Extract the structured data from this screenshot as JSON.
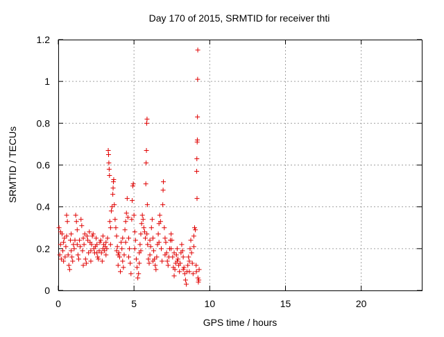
{
  "chart_data": {
    "type": "scatter",
    "title": "Day 170 of 2015, SRMTID for receiver thti",
    "xlabel": "GPS time / hours",
    "ylabel": "SRMTID / TECUs",
    "xlim": [
      0,
      24
    ],
    "ylim": [
      0,
      1.2
    ],
    "xticks": [
      0,
      5,
      10,
      15,
      20
    ],
    "xtick_labels": [
      "0",
      "5",
      "10",
      "15",
      "20"
    ],
    "yticks": [
      0,
      0.2,
      0.4,
      0.6,
      0.8,
      1.0,
      1.2
    ],
    "ytick_labels": [
      "0",
      "0.2",
      "0.4",
      "0.6",
      "0.8",
      "1",
      "1.2"
    ],
    "grid": true,
    "marker": "+",
    "colors": {
      "series": "#e00000",
      "grid": "#a0a0a0",
      "axis": "#000000"
    },
    "series": [
      {
        "name": "thti",
        "points": [
          [
            0.05,
            0.3
          ],
          [
            0.1,
            0.17
          ],
          [
            0.15,
            0.22
          ],
          [
            0.2,
            0.15
          ],
          [
            0.25,
            0.27
          ],
          [
            0.3,
            0.19
          ],
          [
            0.35,
            0.14
          ],
          [
            0.4,
            0.25
          ],
          [
            0.45,
            0.16
          ],
          [
            0.5,
            0.21
          ],
          [
            0.55,
            0.36
          ],
          [
            0.6,
            0.33
          ],
          [
            0.65,
            0.17
          ],
          [
            0.7,
            0.12
          ],
          [
            0.75,
            0.1
          ],
          [
            0.8,
            0.24
          ],
          [
            0.85,
            0.19
          ],
          [
            0.9,
            0.16
          ],
          [
            0.95,
            0.14
          ],
          [
            1.0,
            0.22
          ],
          [
            1.05,
            0.2
          ],
          [
            1.1,
            0.24
          ],
          [
            1.15,
            0.36
          ],
          [
            1.2,
            0.33
          ],
          [
            1.25,
            0.29
          ],
          [
            1.3,
            0.17
          ],
          [
            1.35,
            0.15
          ],
          [
            1.4,
            0.24
          ],
          [
            1.45,
            0.21
          ],
          [
            1.5,
            0.34
          ],
          [
            1.55,
            0.31
          ],
          [
            1.6,
            0.19
          ],
          [
            1.65,
            0.12
          ],
          [
            1.7,
            0.22
          ],
          [
            1.75,
            0.27
          ],
          [
            1.8,
            0.15
          ],
          [
            1.85,
            0.13
          ],
          [
            1.9,
            0.26
          ],
          [
            1.95,
            0.24
          ],
          [
            2.0,
            0.18
          ],
          [
            2.05,
            0.28
          ],
          [
            2.1,
            0.23
          ],
          [
            2.15,
            0.14
          ],
          [
            2.2,
            0.22
          ],
          [
            2.25,
            0.26
          ],
          [
            2.3,
            0.27
          ],
          [
            2.35,
            0.2
          ],
          [
            2.4,
            0.18
          ],
          [
            2.45,
            0.21
          ],
          [
            2.5,
            0.25
          ],
          [
            2.55,
            0.22
          ],
          [
            2.6,
            0.16
          ],
          [
            2.65,
            0.15
          ],
          [
            2.7,
            0.19
          ],
          [
            2.75,
            0.23
          ],
          [
            2.8,
            0.24
          ],
          [
            2.85,
            0.18
          ],
          [
            2.9,
            0.14
          ],
          [
            2.95,
            0.2
          ],
          [
            3.0,
            0.22
          ],
          [
            3.05,
            0.19
          ],
          [
            3.1,
            0.21
          ],
          [
            3.15,
            0.23
          ],
          [
            3.2,
            0.2
          ],
          [
            3.25,
            0.25
          ],
          [
            3.3,
            0.67
          ],
          [
            3.32,
            0.65
          ],
          [
            3.34,
            0.61
          ],
          [
            3.36,
            0.58
          ],
          [
            3.38,
            0.55
          ],
          [
            3.4,
            0.33
          ],
          [
            3.45,
            0.3
          ],
          [
            3.5,
            0.38
          ],
          [
            3.55,
            0.4
          ],
          [
            3.6,
            0.46
          ],
          [
            3.62,
            0.49
          ],
          [
            3.64,
            0.52
          ],
          [
            3.66,
            0.53
          ],
          [
            3.7,
            0.41
          ],
          [
            3.75,
            0.34
          ],
          [
            3.8,
            0.3
          ],
          [
            3.85,
            0.26
          ],
          [
            3.9,
            0.21
          ],
          [
            3.95,
            0.12
          ],
          [
            4.0,
            0.18
          ],
          [
            4.05,
            0.16
          ],
          [
            4.1,
            0.09
          ],
          [
            4.15,
            0.23
          ],
          [
            4.2,
            0.2
          ],
          [
            4.25,
            0.14
          ],
          [
            4.3,
            0.11
          ],
          [
            4.35,
            0.17
          ],
          [
            4.4,
            0.29
          ],
          [
            4.45,
            0.33
          ],
          [
            4.5,
            0.37
          ],
          [
            4.55,
            0.44
          ],
          [
            4.6,
            0.35
          ],
          [
            4.65,
            0.25
          ],
          [
            4.7,
            0.2
          ],
          [
            4.75,
            0.13
          ],
          [
            4.8,
            0.08
          ],
          [
            4.85,
            0.34
          ],
          [
            4.88,
            0.43
          ],
          [
            4.92,
            0.5
          ],
          [
            4.95,
            0.51
          ],
          [
            5.0,
            0.36
          ],
          [
            5.05,
            0.28
          ],
          [
            5.1,
            0.24
          ],
          [
            5.15,
            0.15
          ],
          [
            5.2,
            0.11
          ],
          [
            5.25,
            0.06
          ],
          [
            5.3,
            0.08
          ],
          [
            5.35,
            0.18
          ],
          [
            5.4,
            0.22
          ],
          [
            5.45,
            0.27
          ],
          [
            5.5,
            0.32
          ],
          [
            5.55,
            0.36
          ],
          [
            5.6,
            0.34
          ],
          [
            5.65,
            0.3
          ],
          [
            5.7,
            0.28
          ],
          [
            5.75,
            0.25
          ],
          [
            5.78,
            0.51
          ],
          [
            5.8,
            0.61
          ],
          [
            5.82,
            0.67
          ],
          [
            5.84,
            0.8
          ],
          [
            5.86,
            0.82
          ],
          [
            5.88,
            0.41
          ],
          [
            5.9,
            0.22
          ],
          [
            5.95,
            0.15
          ],
          [
            6.0,
            0.13
          ],
          [
            6.05,
            0.17
          ],
          [
            6.1,
            0.21
          ],
          [
            6.15,
            0.3
          ],
          [
            6.2,
            0.34
          ],
          [
            6.25,
            0.25
          ],
          [
            6.3,
            0.19
          ],
          [
            6.35,
            0.15
          ],
          [
            6.4,
            0.12
          ],
          [
            6.45,
            0.1
          ],
          [
            6.5,
            0.16
          ],
          [
            6.55,
            0.22
          ],
          [
            6.6,
            0.27
          ],
          [
            6.65,
            0.32
          ],
          [
            6.7,
            0.36
          ],
          [
            6.75,
            0.33
          ],
          [
            6.8,
            0.2
          ],
          [
            6.85,
            0.14
          ],
          [
            6.9,
            0.41
          ],
          [
            6.92,
            0.48
          ],
          [
            6.94,
            0.52
          ],
          [
            7.0,
            0.3
          ],
          [
            7.05,
            0.25
          ],
          [
            7.1,
            0.23
          ],
          [
            7.15,
            0.18
          ],
          [
            7.2,
            0.14
          ],
          [
            7.25,
            0.12
          ],
          [
            7.3,
            0.16
          ],
          [
            7.35,
            0.2
          ],
          [
            7.4,
            0.24
          ],
          [
            7.45,
            0.27
          ],
          [
            7.5,
            0.24
          ],
          [
            7.55,
            0.16
          ],
          [
            7.6,
            0.11
          ],
          [
            7.65,
            0.07
          ],
          [
            7.7,
            0.1
          ],
          [
            7.75,
            0.13
          ],
          [
            7.8,
            0.17
          ],
          [
            7.85,
            0.2
          ],
          [
            7.9,
            0.15
          ],
          [
            7.95,
            0.12
          ],
          [
            8.0,
            0.09
          ],
          [
            8.05,
            0.13
          ],
          [
            8.1,
            0.18
          ],
          [
            8.15,
            0.22
          ],
          [
            8.2,
            0.19
          ],
          [
            8.25,
            0.16
          ],
          [
            8.3,
            0.11
          ],
          [
            8.35,
            0.08
          ],
          [
            8.4,
            0.05
          ],
          [
            8.45,
            0.03
          ],
          [
            8.5,
            0.09
          ],
          [
            8.55,
            0.12
          ],
          [
            8.6,
            0.16
          ],
          [
            8.65,
            0.14
          ],
          [
            8.7,
            0.2
          ],
          [
            8.75,
            0.24
          ],
          [
            8.8,
            0.18
          ],
          [
            8.85,
            0.13
          ],
          [
            8.9,
            0.08
          ],
          [
            8.95,
            0.26
          ],
          [
            9.0,
            0.3
          ],
          [
            9.05,
            0.29
          ],
          [
            9.1,
            0.12
          ],
          [
            9.12,
            0.09
          ],
          [
            9.14,
            0.57
          ],
          [
            9.15,
            0.63
          ],
          [
            9.16,
            0.44
          ],
          [
            9.17,
            0.71
          ],
          [
            9.18,
            0.72
          ],
          [
            9.19,
            0.83
          ],
          [
            9.2,
            1.01
          ],
          [
            9.21,
            1.15
          ],
          [
            9.22,
            0.06
          ],
          [
            9.25,
            0.04
          ],
          [
            9.28,
            0.05
          ],
          [
            9.3,
            0.1
          ],
          [
            0.15,
            0.28
          ],
          [
            0.35,
            0.23
          ],
          [
            0.55,
            0.26
          ],
          [
            0.85,
            0.27
          ],
          [
            1.25,
            0.22
          ],
          [
            1.65,
            0.25
          ],
          [
            2.15,
            0.19
          ],
          [
            2.55,
            0.18
          ],
          [
            2.95,
            0.26
          ],
          [
            3.15,
            0.17
          ],
          [
            3.45,
            0.22
          ],
          [
            3.85,
            0.19
          ],
          [
            4.25,
            0.25
          ],
          [
            4.65,
            0.16
          ],
          [
            5.05,
            0.2
          ],
          [
            5.45,
            0.19
          ],
          [
            5.85,
            0.27
          ],
          [
            6.25,
            0.14
          ],
          [
            6.65,
            0.23
          ],
          [
            7.05,
            0.17
          ],
          [
            7.45,
            0.2
          ],
          [
            7.85,
            0.14
          ],
          [
            8.25,
            0.1
          ],
          [
            8.65,
            0.09
          ],
          [
            8.95,
            0.21
          ],
          [
            3.95,
            0.17
          ],
          [
            4.45,
            0.23
          ],
          [
            5.35,
            0.13
          ],
          [
            6.05,
            0.24
          ],
          [
            7.65,
            0.18
          ]
        ]
      }
    ]
  }
}
